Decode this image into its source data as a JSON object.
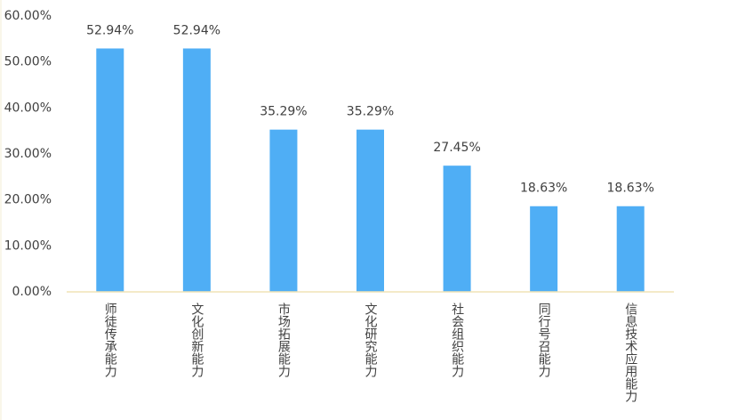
{
  "chart_data": {
    "type": "bar",
    "categories": [
      "师徒传承能力",
      "文化创新能力",
      "市场拓展能力",
      "文化研究能力",
      "社会组织能力",
      "同行号召能力",
      "信息技术应用能力"
    ],
    "values": [
      52.94,
      52.94,
      35.29,
      35.29,
      27.45,
      18.63,
      18.63
    ],
    "value_labels": [
      "52.94%",
      "52.94%",
      "35.29%",
      "35.29%",
      "27.45%",
      "18.63%",
      "18.63%"
    ],
    "color": "#4faef5",
    "ylim": [
      0,
      60
    ],
    "yticks": [
      {
        "value": 0,
        "label": "0.00%"
      },
      {
        "value": 10,
        "label": "10.00%"
      },
      {
        "value": 20,
        "label": "20.00%"
      },
      {
        "value": 30,
        "label": "30.00%"
      },
      {
        "value": 40,
        "label": "40.00%"
      },
      {
        "value": 50,
        "label": "50.00%"
      },
      {
        "value": 60,
        "label": "60.00%"
      }
    ],
    "grid": false
  }
}
